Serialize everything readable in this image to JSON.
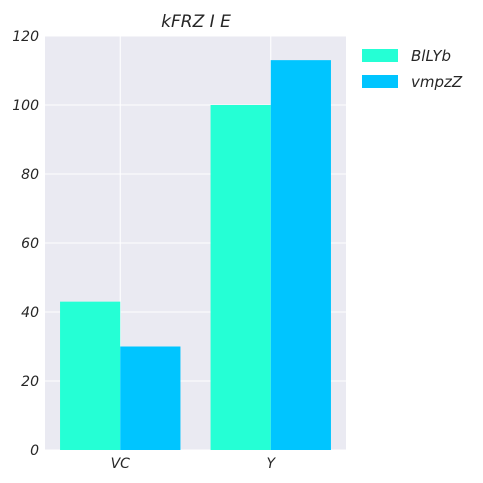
{
  "chart_data": {
    "type": "bar",
    "title": "kFRZ I E",
    "xlabel": "",
    "ylabel": "",
    "categories": [
      "VC",
      "Y"
    ],
    "series": [
      {
        "name": "BlLYb",
        "values": [
          43,
          100
        ],
        "color": "#25FFD5"
      },
      {
        "name": "vmpzZ",
        "values": [
          30,
          113
        ],
        "color": "#00C5FF"
      }
    ],
    "ylim": [
      0,
      120
    ],
    "yticks": [
      0,
      20,
      40,
      60,
      80,
      100,
      120
    ],
    "grid": true,
    "legend_position": "top-right-outside",
    "background": "#EAEAF2"
  }
}
